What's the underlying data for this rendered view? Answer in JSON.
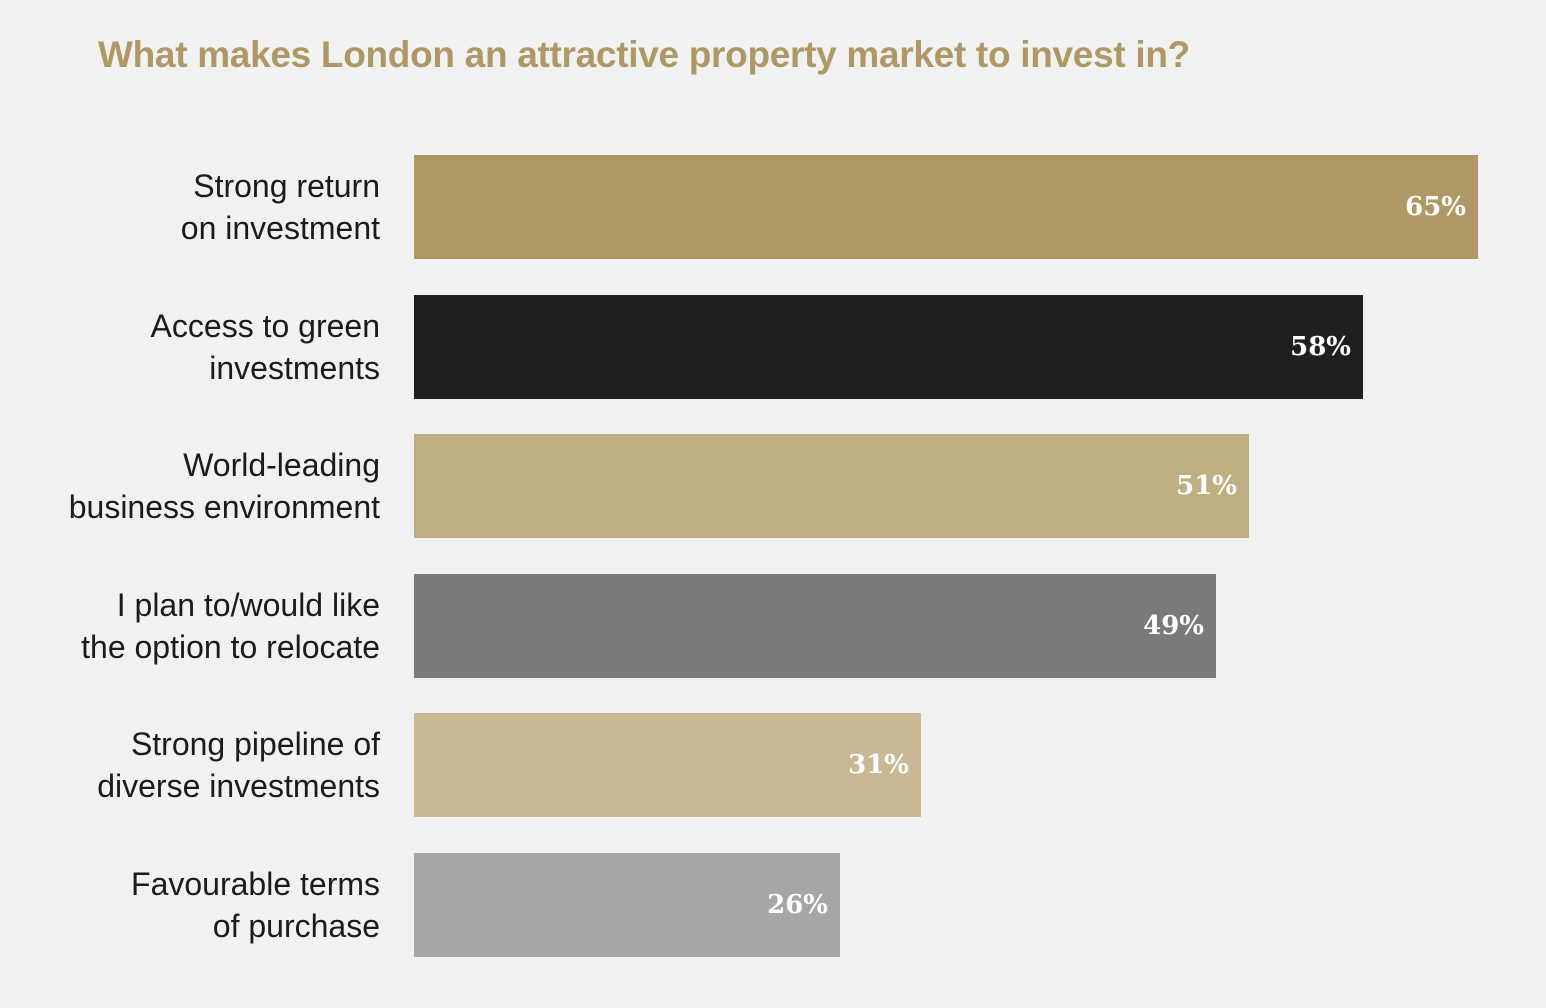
{
  "chart_data": {
    "type": "bar",
    "orientation": "horizontal",
    "title": "What makes London an attractive property market to invest in?",
    "categories": [
      [
        "Strong return",
        "on investment"
      ],
      [
        "Access to green",
        "investments"
      ],
      [
        "World-leading",
        "business environment"
      ],
      [
        "I plan to/would like",
        "the option to relocate"
      ],
      [
        "Strong pipeline of",
        "diverse investments"
      ],
      [
        "Favourable terms",
        "of purchase"
      ]
    ],
    "values": [
      65,
      58,
      51,
      49,
      31,
      26
    ],
    "value_labels": [
      "65%",
      "58%",
      "51%",
      "49%",
      "31%",
      "26%"
    ],
    "colors": [
      "#ae9966",
      "#1f1f1f",
      "#bfae82",
      "#7a7a7a",
      "#c8b994",
      "#a6a6a6"
    ],
    "unit": "%",
    "grid": false,
    "legend": "none"
  }
}
